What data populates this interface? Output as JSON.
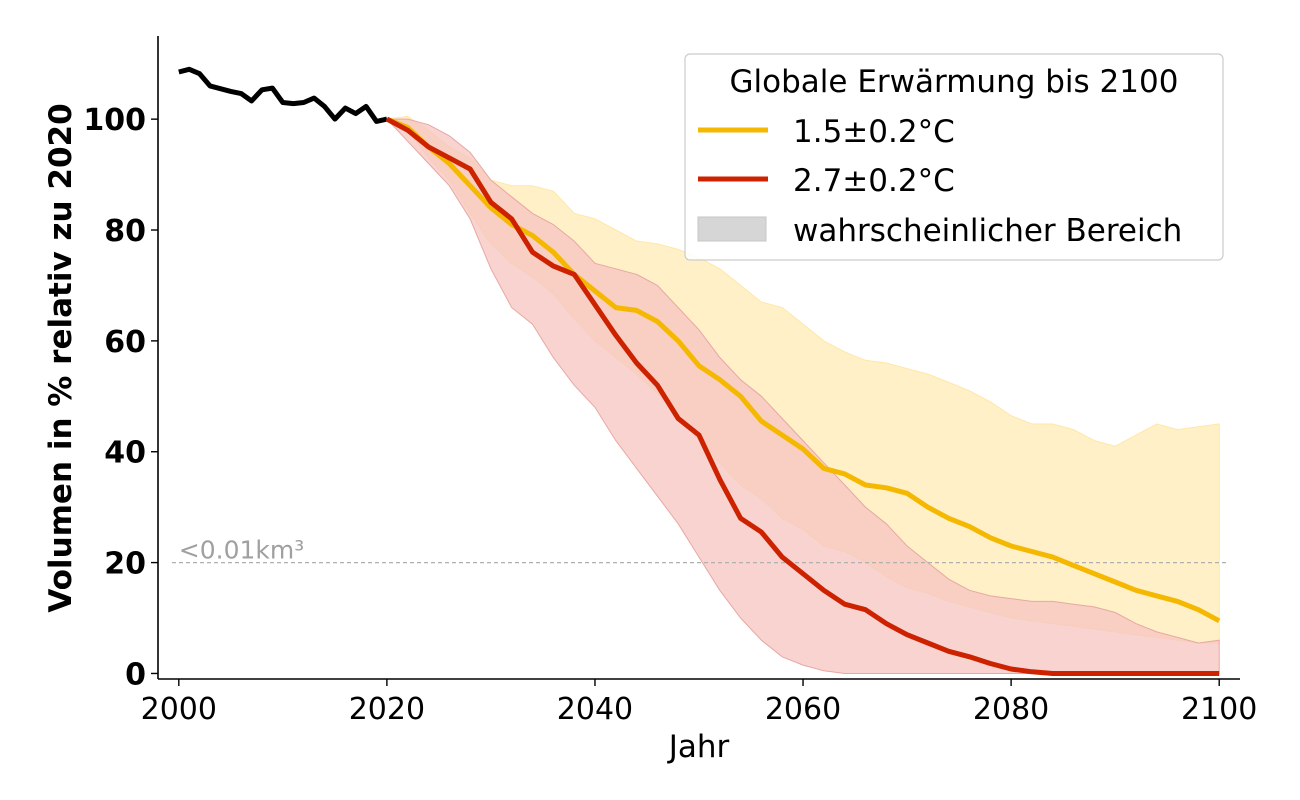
{
  "chart_data": {
    "type": "line",
    "xlabel": "Jahr",
    "ylabel": "Volumen in % relativ zu 2020",
    "xlim": [
      1998,
      2102
    ],
    "ylim": [
      -1,
      115
    ],
    "xticks": [
      "2000",
      "2020",
      "2040",
      "2060",
      "2080",
      "2100"
    ],
    "yticks": [
      "0",
      "20",
      "40",
      "60",
      "80",
      "100"
    ],
    "legend": {
      "title": "Globale Erwärmung bis 2100",
      "placement": "top-right",
      "entries": [
        "1.5±0.2°C",
        "2.7±0.2°C",
        "wahrscheinlicher Bereich"
      ]
    },
    "threshold": {
      "y": 20,
      "label": "<0.01km³",
      "color": "#b0b0b0"
    },
    "colors": {
      "historical": "#000000",
      "low": "#f5b800",
      "high": "#cc2200",
      "low_band": "#fff0c8",
      "high_band": "#f5c4c0",
      "legend_patch": "#d6d6d6"
    },
    "historical": {
      "x": [
        2000,
        2001,
        2002,
        2003,
        2004,
        2005,
        2006,
        2007,
        2008,
        2009,
        2010,
        2011,
        2012,
        2013,
        2014,
        2015,
        2016,
        2017,
        2018,
        2019,
        2020
      ],
      "y": [
        108.5,
        109.0,
        108.2,
        106.0,
        105.5,
        105.0,
        104.6,
        103.3,
        105.3,
        105.6,
        103.0,
        102.8,
        103.0,
        103.8,
        102.3,
        100.0,
        102.0,
        101.0,
        102.3,
        99.6,
        100.0
      ]
    },
    "series": [
      {
        "name": "1.5±0.2°C",
        "x": [
          2020,
          2022,
          2024,
          2026,
          2028,
          2030,
          2032,
          2034,
          2036,
          2038,
          2040,
          2042,
          2044,
          2046,
          2048,
          2050,
          2052,
          2054,
          2056,
          2058,
          2060,
          2062,
          2064,
          2066,
          2068,
          2070,
          2072,
          2074,
          2076,
          2078,
          2080,
          2082,
          2084,
          2086,
          2088,
          2090,
          2092,
          2094,
          2096,
          2098,
          2100
        ],
        "y": [
          100,
          98.5,
          95,
          92,
          88,
          84,
          81,
          79,
          76,
          72,
          69,
          66,
          65.5,
          63.5,
          60,
          55.5,
          53,
          50,
          45.5,
          43,
          40.5,
          37,
          36,
          34,
          33.5,
          32.5,
          30,
          28,
          26.5,
          24.5,
          23,
          22,
          21,
          19.5,
          18,
          16.5,
          15,
          14,
          13,
          11.5,
          9.5
        ],
        "lower": [
          100,
          98,
          93,
          89,
          83,
          77.5,
          74,
          71.5,
          68.5,
          64,
          60,
          57,
          54,
          50.5,
          47,
          42,
          38,
          34,
          31.5,
          28,
          26,
          23,
          22,
          20,
          17.5,
          15.5,
          14.5,
          13,
          12,
          11,
          10,
          9.5,
          9,
          8.5,
          8,
          7.5,
          7,
          6.5,
          6,
          5.5,
          5.5
        ],
        "upper": [
          100,
          100.5,
          98,
          95,
          93,
          89,
          88,
          88,
          87,
          83,
          82,
          80,
          78,
          77.5,
          76.5,
          75,
          73,
          70,
          67,
          66,
          63,
          60,
          58,
          56.5,
          56,
          55,
          54,
          52.5,
          51,
          49,
          46.5,
          45,
          45,
          44,
          42,
          41,
          43,
          45,
          44,
          44.5,
          45
        ]
      },
      {
        "name": "2.7±0.2°C",
        "x": [
          2020,
          2022,
          2024,
          2026,
          2028,
          2030,
          2032,
          2034,
          2036,
          2038,
          2040,
          2042,
          2044,
          2046,
          2048,
          2050,
          2052,
          2054,
          2056,
          2058,
          2060,
          2062,
          2064,
          2066,
          2068,
          2070,
          2072,
          2074,
          2076,
          2078,
          2080,
          2082,
          2084,
          2086,
          2088,
          2090,
          2092,
          2094,
          2096,
          2098,
          2100
        ],
        "y": [
          100,
          98,
          95,
          93,
          91,
          85,
          82,
          76,
          73.5,
          72,
          66.5,
          61,
          56,
          52,
          46,
          43,
          35,
          28,
          25.5,
          21,
          18,
          15,
          12.5,
          11.5,
          9,
          7,
          5.5,
          4,
          3,
          1.8,
          0.8,
          0.3,
          0,
          0,
          0,
          0,
          0,
          0,
          0,
          0,
          0
        ],
        "lower": [
          100,
          96,
          92,
          88,
          82,
          73,
          66,
          63,
          57,
          52,
          48,
          42,
          37,
          32,
          27,
          21,
          15,
          10,
          6,
          3,
          1.5,
          0.5,
          0,
          0,
          0,
          0,
          0,
          0,
          0,
          0,
          0,
          0,
          0,
          0,
          0,
          0,
          0,
          0,
          0,
          0,
          0
        ],
        "upper": [
          100,
          100,
          99,
          97,
          94,
          89,
          86,
          83,
          81,
          78,
          74,
          73,
          72,
          70,
          66,
          62,
          57,
          53,
          50,
          46,
          42,
          38,
          34,
          30,
          27,
          23,
          20,
          17,
          15,
          14,
          13.5,
          13,
          13,
          12.5,
          12,
          11,
          9,
          7.5,
          6.5,
          5.5,
          6
        ]
      }
    ]
  }
}
